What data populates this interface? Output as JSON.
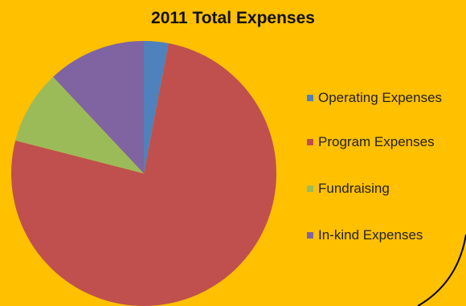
{
  "chart_data": {
    "type": "pie",
    "title": "2011 Total Expenses",
    "categories": [
      "Operating Expenses",
      "Program Expenses",
      "Fundraising",
      "In-kind Expenses"
    ],
    "values": [
      3,
      76,
      9,
      12
    ],
    "colors": [
      "#4F81BD",
      "#C0504D",
      "#9BBB59",
      "#8064A2"
    ],
    "legend_position": "right"
  },
  "colors": {
    "background": "#FFC000",
    "corner_curve": "#000000"
  }
}
